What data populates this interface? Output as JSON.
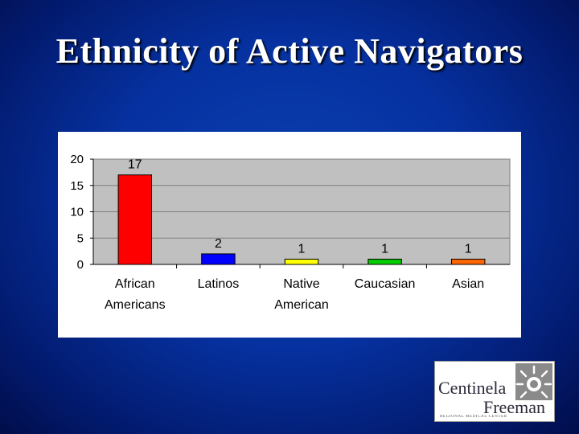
{
  "slide": {
    "title": "Ethnicity of Active Navigators"
  },
  "logo": {
    "line1": "Centinela",
    "line2": "Freeman",
    "tagline": "REGIONAL MEDICAL CENTER"
  },
  "colors": {
    "plot_background": "#c0c0c0",
    "gridline": "#7f7f7f"
  },
  "chart_data": {
    "type": "bar",
    "title": "",
    "xlabel": "",
    "ylabel": "",
    "categories": [
      [
        "African",
        "Americans"
      ],
      [
        "Latinos"
      ],
      [
        "Native",
        "American"
      ],
      [
        "Caucasian"
      ],
      [
        "Asian"
      ]
    ],
    "values": [
      17,
      2,
      1,
      1,
      1
    ],
    "bar_colors": [
      "#ff0000",
      "#0000ff",
      "#ffff00",
      "#00cc00",
      "#ff6600"
    ],
    "ylim": [
      0,
      20
    ],
    "yticks": [
      0,
      5,
      10,
      15,
      20
    ],
    "grid": true,
    "data_labels": true,
    "legend": "none"
  }
}
